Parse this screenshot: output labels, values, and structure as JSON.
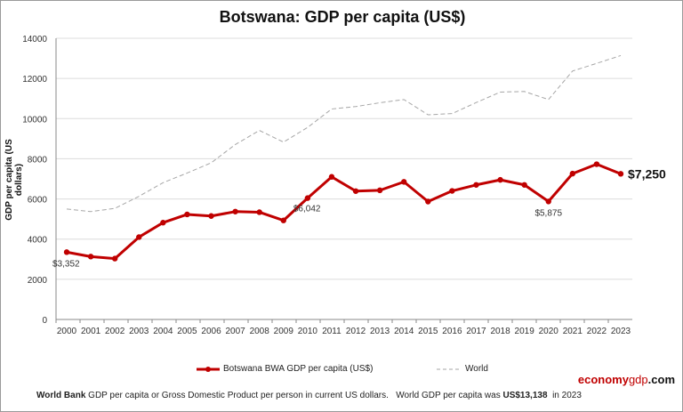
{
  "chart_data": {
    "type": "line",
    "title": "Botswana: GDP per capita (US$)",
    "ylabel": "GDP per capita (US dollars)",
    "xlabel": "",
    "ylim": [
      0,
      14000
    ],
    "yticks": [
      0,
      2000,
      4000,
      6000,
      8000,
      10000,
      12000,
      14000
    ],
    "grid": true,
    "legend": "bottom",
    "categories": [
      "2000",
      "2001",
      "2002",
      "2003",
      "2004",
      "2005",
      "2006",
      "2007",
      "2008",
      "2009",
      "2010",
      "2011",
      "2012",
      "2013",
      "2014",
      "2015",
      "2016",
      "2017",
      "2018",
      "2019",
      "2020",
      "2021",
      "2022",
      "2023"
    ],
    "series": [
      {
        "name": "Botswana BWA GDP per capita (US$)",
        "color": "#c00000",
        "style": "solid-markers",
        "values": [
          3352,
          3130,
          3030,
          4100,
          4820,
          5230,
          5150,
          5370,
          5340,
          4930,
          6042,
          7100,
          6390,
          6430,
          6850,
          5870,
          6400,
          6700,
          6950,
          6700,
          5875,
          7260,
          7730,
          7250
        ]
      },
      {
        "name": "World",
        "color": "#a6a6a6",
        "style": "dashed",
        "values": [
          5500,
          5370,
          5530,
          6130,
          6810,
          7290,
          7800,
          8710,
          9410,
          8830,
          9560,
          10480,
          10600,
          10790,
          10950,
          10190,
          10250,
          10800,
          11320,
          11350,
          10950,
          12370,
          12750,
          13138
        ]
      }
    ],
    "annotations": [
      {
        "index": 0,
        "text": "$3,352"
      },
      {
        "index": 10,
        "text": "$6,042"
      },
      {
        "index": 20,
        "text": "$5,875"
      },
      {
        "index": 23,
        "text": "$7,250"
      }
    ]
  },
  "brand": {
    "part1": "economy",
    "part2": "gdp",
    "part3": ".com"
  },
  "footer": {
    "source_bold": "World Bank",
    "text1": " GDP per capita or Gross Domestic Product per person in current US dollars.   World GDP per capita was ",
    "value_bold": "US$13,138",
    "text2": "  in 2023"
  }
}
